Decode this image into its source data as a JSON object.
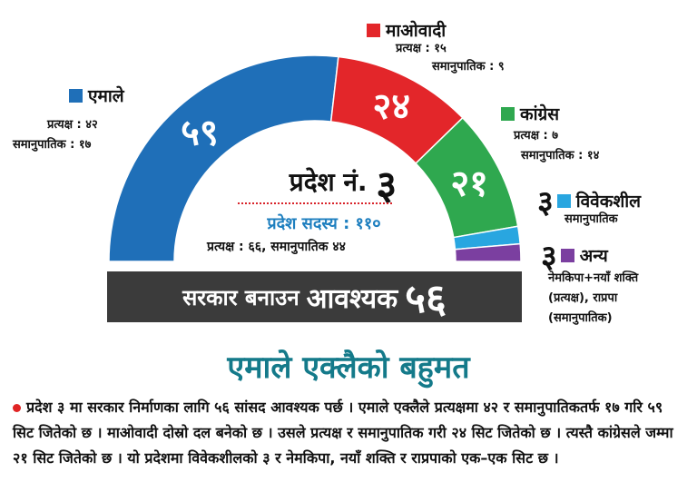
{
  "chart_data": {
    "type": "semicircle-parliament",
    "title": "प्रदेश नं. ३",
    "title_prefix": "प्रदेश नं.",
    "title_number": "३",
    "members_label": "प्रदेश सदस्य : ११०",
    "split_label": "प्रत्यक्ष : ६६, समानुपातिक ४४",
    "total_seats": 110,
    "series": [
      {
        "name": "एमाले",
        "seats": 59,
        "seats_label": "५९",
        "color": "#1f6fb8",
        "direct": "प्रत्यक्ष : ४२",
        "proportional": "समानुपातिक : १७"
      },
      {
        "name": "माओवादी",
        "seats": 24,
        "seats_label": "२४",
        "color": "#e3262a",
        "direct": "प्रत्यक्ष : १५",
        "proportional": "समानुपातिक : ९"
      },
      {
        "name": "कांग्रेस",
        "seats": 21,
        "seats_label": "२१",
        "color": "#2fa84f",
        "direct": "प्रत्यक्ष : ७",
        "proportional": "समानुपातिक : १४"
      },
      {
        "name": "विवेकशील",
        "seats": 3,
        "seats_label": "३",
        "color": "#29a6e0",
        "proportional": "समानुपातिक"
      },
      {
        "name": "अन्य",
        "seats": 3,
        "seats_label": "३",
        "color": "#7b3fa0",
        "note": "नेमकिपा+नयाँ शक्ति\n(प्रत्यक्ष), राप्रपा\n(समानुपातिक)"
      }
    ]
  },
  "banner": {
    "text1": "सरकार बनाउन",
    "text2": "आवश्यक",
    "number": "५६"
  },
  "headline": "एमाले एक्लैको बहुमत",
  "body": "प्रदेश ३ मा सरकार निर्माणका लागि ५६ सांसद आवश्यक पर्छ । एमाले एक्लैले प्रत्यक्षमा ४२ र समानुपातिकतर्फ १७ गरि ५९ सिट जितेको छ । माओवादी दोस्रो दल बनेको छ । उसले प्रत्यक्ष र समानुपातिक गरी २४ सिट जितेको छ । त्यस्तै कांग्रेसले जम्मा २१ सिट जितेको छ । यो प्रदेशमा विवेकशीलको ३ र नेमकिपा, नयाँ शक्ति र राप्रपाको एक–एक सिट छ ।"
}
